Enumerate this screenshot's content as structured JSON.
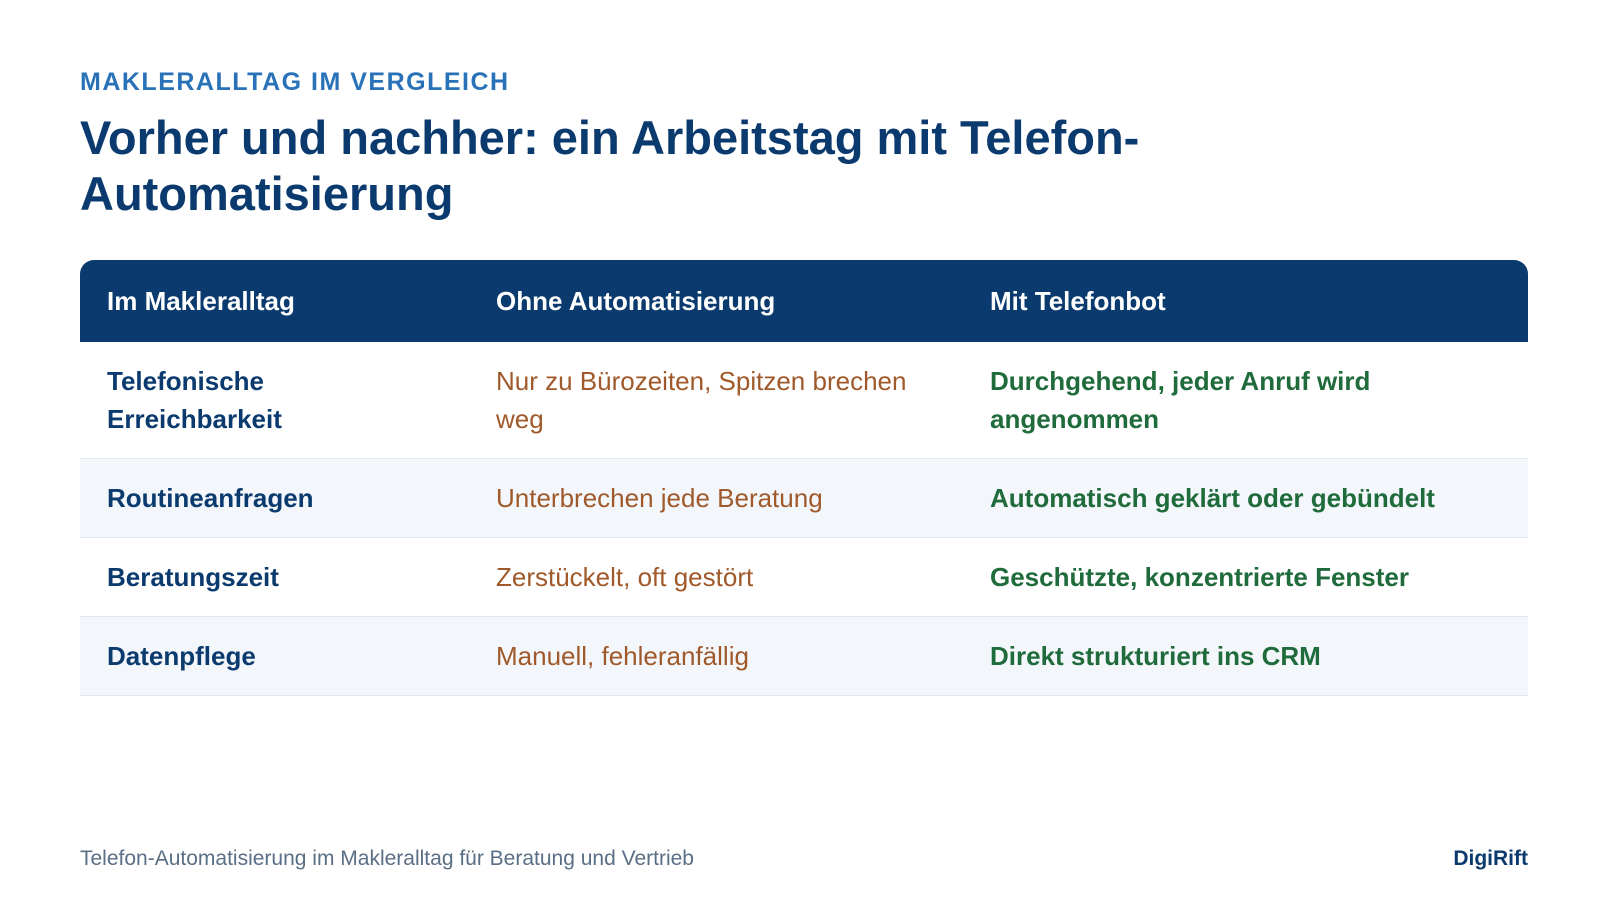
{
  "header": {
    "kicker": "MAKLERALLTAG IM VERGLEICH",
    "title": "Vorher und nachher: ein Arbeitstag mit Telefon-Automatisierung"
  },
  "table": {
    "columns": [
      "Im Makleralltag",
      "Ohne Automatisierung",
      "Mit Telefonbot"
    ],
    "rows": [
      [
        "Telefonische Erreichbarkeit",
        "Nur zu Bürozeiten, Spitzen brechen weg",
        "Durchgehend, jeder Anruf wird angenommen"
      ],
      [
        "Routineanfragen",
        "Unterbrechen jede Beratung",
        "Automatisch geklärt oder gebündelt"
      ],
      [
        "Beratungszeit",
        "Zerstückelt, oft gestört",
        "Geschützte, konzentrierte Fenster"
      ],
      [
        "Datenpflege",
        "Manuell, fehleranfällig",
        "Direkt strukturiert ins CRM"
      ]
    ]
  },
  "footer": {
    "caption": "Telefon-Automatisierung im Makleralltag für Beratung und Vertrieb",
    "brand": "DigiRift"
  }
}
